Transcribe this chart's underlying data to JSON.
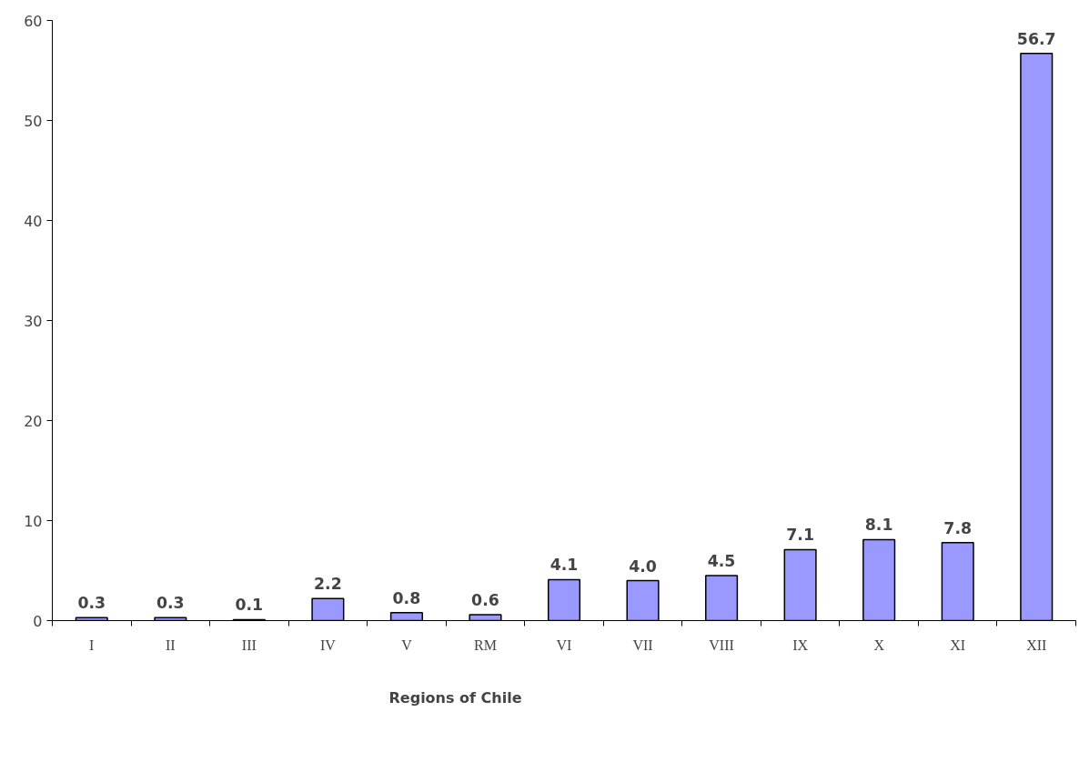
{
  "chart_data": {
    "type": "bar",
    "annotations": [
      "Regions of Chile"
    ],
    "categories": [
      "I",
      "II",
      "III",
      "IV",
      "V",
      "RM",
      "VI",
      "VII",
      "VIII",
      "IX",
      "X",
      "XI",
      "XII"
    ],
    "values": [
      0.3,
      0.3,
      0.1,
      2.2,
      0.8,
      0.6,
      4.1,
      4.0,
      4.5,
      7.1,
      8.1,
      7.8,
      56.7
    ],
    "value_labels": [
      "0.3",
      "0.3",
      "0.1",
      "2.2",
      "0.8",
      "0.6",
      "4.1",
      "4.0",
      "4.5",
      "7.1",
      "8.1",
      "7.8",
      "56.7"
    ],
    "color": "#9999ff",
    "ylim": [
      0,
      60
    ],
    "yticks": [
      0,
      10,
      20,
      30,
      40,
      50,
      60
    ],
    "grid": false
  }
}
